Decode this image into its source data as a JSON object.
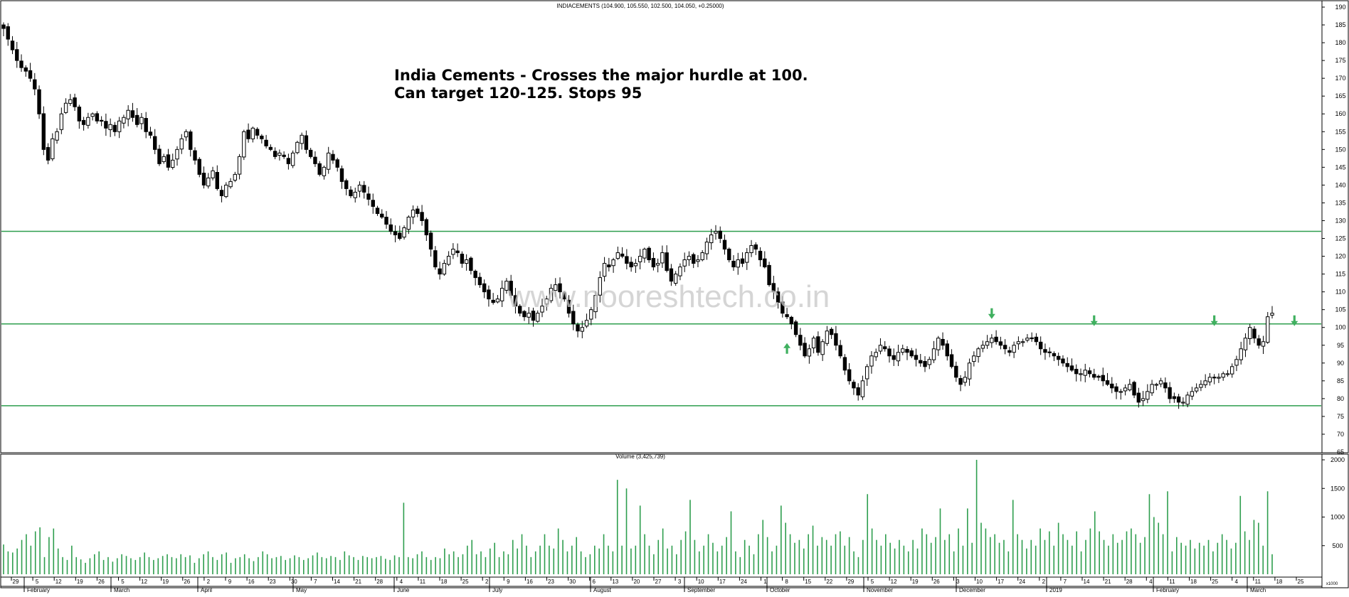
{
  "chart_data": [
    {
      "type": "candlestick",
      "title": "INDIACEMENTS (104.900, 105.550, 102.500, 104.050, +0.25000)",
      "annotation": {
        "lines": [
          "India Cements - Crosses the major hurdle at 100.",
          "Can target 120-125. Stops 95"
        ]
      },
      "watermark": "www.nooreshtech.co.in",
      "ylim": [
        65,
        190
      ],
      "y_ticks": [
        70,
        75,
        80,
        85,
        90,
        95,
        100,
        105,
        110,
        115,
        120,
        125,
        130,
        135,
        140,
        145,
        150,
        155,
        160,
        165,
        170,
        175,
        180,
        185,
        190
      ],
      "y_tick_suffix_label": "65",
      "horizontal_lines": [
        127,
        101,
        78
      ],
      "line_color": "#2e9e4e",
      "up_candle_color": "#ffffff",
      "down_candle_color": "#000000",
      "arrow_color": "#3fb05f",
      "arrows": [
        {
          "index": 176,
          "direction": "up",
          "at_price": 96
        },
        {
          "index": 222,
          "direction": "down",
          "at_price": 102
        },
        {
          "index": 245,
          "direction": "down",
          "at_price": 100
        },
        {
          "index": 272,
          "direction": "down",
          "at_price": 100
        },
        {
          "index": 290,
          "direction": "down",
          "at_price": 100
        },
        {
          "index": 398,
          "direction": "down",
          "at_price": 106
        }
      ],
      "closes": [
        184,
        181,
        178,
        175,
        173,
        172,
        170,
        167,
        160,
        150,
        147,
        153,
        155,
        160,
        163,
        164,
        162,
        158,
        157,
        159,
        160,
        158,
        158,
        156,
        157,
        155,
        158,
        159,
        161,
        159,
        157,
        159,
        155,
        154,
        150,
        146,
        148,
        145,
        147,
        150,
        153,
        155,
        150,
        147,
        143,
        140,
        142,
        144,
        139,
        137,
        140,
        141,
        143,
        148,
        155,
        153,
        156,
        154,
        153,
        151,
        150,
        148,
        149,
        148,
        146,
        149,
        152,
        154,
        150,
        148,
        146,
        143,
        145,
        149,
        147,
        145,
        141,
        139,
        137,
        138,
        140,
        138,
        136,
        134,
        132,
        131,
        129,
        127,
        126,
        125,
        128,
        131,
        133,
        132,
        130,
        126,
        122,
        117,
        115,
        118,
        120,
        122,
        121,
        118,
        119,
        116,
        114,
        112,
        110,
        108,
        107,
        108,
        111,
        113,
        109,
        106,
        104,
        103,
        104,
        102,
        104,
        106,
        108,
        111,
        112,
        110,
        108,
        104,
        101,
        99,
        100,
        102,
        105,
        109,
        114,
        118,
        117,
        119,
        121,
        120,
        118,
        117,
        118,
        120,
        122,
        119,
        117,
        118,
        121,
        116,
        113,
        115,
        117,
        119,
        120,
        118,
        119,
        121,
        124,
        126,
        127,
        125,
        122,
        119,
        117,
        119,
        118,
        121,
        123,
        122,
        119,
        117,
        112,
        110,
        107,
        104,
        103,
        101,
        98,
        95,
        92,
        94,
        97,
        93,
        96,
        99,
        98,
        95,
        92,
        88,
        85,
        83,
        81,
        85,
        89,
        92,
        93,
        95,
        94,
        92,
        91,
        93,
        94,
        93,
        92,
        91,
        90,
        89,
        91,
        94,
        97,
        95,
        92,
        89,
        86,
        84,
        86,
        90,
        92,
        94,
        95,
        96,
        97,
        96,
        95,
        94,
        93,
        95,
        96,
        96,
        97,
        97,
        96,
        94,
        93,
        93,
        92,
        91,
        90,
        89,
        88,
        87,
        87,
        88,
        87,
        86,
        86,
        85,
        84,
        83,
        82,
        82,
        83,
        84,
        81,
        79,
        80,
        82,
        84,
        84,
        85,
        83,
        80,
        80,
        79,
        79,
        81,
        82,
        83,
        84,
        85,
        86,
        86,
        86,
        87,
        87,
        89,
        91,
        94,
        97,
        100,
        97,
        95,
        96,
        103,
        104
      ]
    },
    {
      "type": "bar",
      "title": "Volume (3,425,739)",
      "ylim": [
        0,
        2000
      ],
      "y_ticks": [
        500,
        1000,
        1500,
        2000
      ],
      "x_axis_footer": "x1000",
      "bar_color": "#2e9e4e",
      "values": [
        520,
        400,
        380,
        450,
        600,
        700,
        500,
        750,
        820,
        300,
        650,
        800,
        450,
        300,
        250,
        500,
        300,
        260,
        200,
        280,
        350,
        400,
        250,
        300,
        220,
        280,
        350,
        320,
        280,
        250,
        300,
        380,
        300,
        250,
        280,
        320,
        350,
        300,
        280,
        350,
        300,
        330,
        200,
        280,
        350,
        400,
        300,
        250,
        350,
        380,
        200,
        280,
        300,
        350,
        280,
        230,
        300,
        400,
        350,
        280,
        300,
        320,
        250,
        280,
        330,
        300,
        250,
        280,
        330,
        380,
        300,
        280,
        320,
        300,
        250,
        400,
        330,
        300,
        250,
        320,
        300,
        280,
        300,
        320,
        270,
        250,
        330,
        300,
        1250,
        300,
        280,
        350,
        400,
        300,
        250,
        300,
        280,
        450,
        350,
        400,
        300,
        350,
        500,
        600,
        350,
        400,
        300,
        450,
        550,
        300,
        400,
        350,
        600,
        450,
        700,
        500,
        300,
        400,
        500,
        700,
        500,
        450,
        800,
        600,
        400,
        500,
        650,
        400,
        300,
        350,
        500,
        450,
        700,
        500,
        400,
        1650,
        500,
        1500,
        450,
        500,
        1200,
        700,
        500,
        350,
        600,
        800,
        450,
        500,
        350,
        600,
        750,
        1300,
        600,
        400,
        500,
        700,
        550,
        400,
        500,
        650,
        1100,
        400,
        300,
        600,
        500,
        350,
        700,
        950,
        650,
        400,
        500,
        1200,
        900,
        700,
        550,
        600,
        450,
        700,
        850,
        500,
        650,
        600,
        500,
        700,
        750,
        500,
        650,
        400,
        300,
        600,
        1400,
        800,
        600,
        500,
        700,
        550,
        450,
        600,
        500,
        400,
        600,
        450,
        800,
        700,
        550,
        650,
        1150,
        600,
        700,
        400,
        800,
        500,
        1150,
        550,
        2000,
        900,
        800,
        650,
        700,
        550,
        600,
        400,
        1300,
        700,
        600,
        450,
        600,
        500,
        800,
        600,
        750,
        500,
        900,
        700,
        600,
        500,
        750,
        400,
        600,
        800,
        1100,
        750,
        600,
        500,
        700,
        550,
        600,
        750,
        800,
        700,
        550,
        650,
        1400,
        1000,
        900,
        700,
        1450,
        400,
        650,
        550,
        500,
        600,
        450,
        550,
        500,
        600,
        400,
        550,
        700,
        600,
        450,
        550,
        1370,
        750,
        600,
        950,
        900,
        500,
        1450,
        350
      ],
      "x_tick_labels": [
        "29",
        "5",
        "12",
        "19",
        "26",
        "5",
        "12",
        "19",
        "26",
        "2",
        "9",
        "16",
        "23",
        "30",
        "7",
        "14",
        "21",
        "28",
        "4",
        "11",
        "18",
        "25",
        "2",
        "9",
        "16",
        "23",
        "30",
        "6",
        "13",
        "20",
        "27",
        "3",
        "10",
        "17",
        "24",
        "1",
        "8",
        "15",
        "22",
        "29",
        "5",
        "12",
        "19",
        "26",
        "3",
        "10",
        "17",
        "24",
        "2",
        "7",
        "14",
        "21",
        "28",
        "4",
        "11",
        "18",
        "25",
        "4",
        "11",
        "18",
        "25"
      ],
      "month_labels": [
        "February",
        "March",
        "April",
        "May",
        "June",
        "July",
        "August",
        "September",
        "October",
        "November",
        "December",
        "2019",
        "February",
        "March"
      ]
    }
  ]
}
